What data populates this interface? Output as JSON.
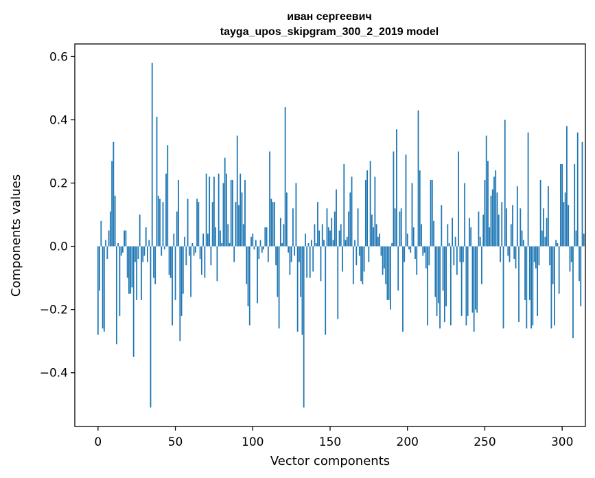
{
  "chart_data": {
    "type": "bar",
    "title_line1": "иван сергеевич",
    "title_line2": "tayga_upos_skipgram_300_2_2019 model",
    "xlabel": "Vector components",
    "ylabel": "Components values",
    "xlim": [
      -15,
      315
    ],
    "ylim": [
      -0.57,
      0.64
    ],
    "xticks": [
      0,
      50,
      100,
      150,
      200,
      250,
      300
    ],
    "xtick_labels": [
      "0",
      "50",
      "100",
      "150",
      "200",
      "250",
      "300"
    ],
    "yticks": [
      -0.4,
      -0.2,
      0.0,
      0.2,
      0.4,
      0.6
    ],
    "ytick_labels": [
      "−0.4",
      "−0.2",
      "0.0",
      "0.2",
      "0.4",
      "0.6"
    ],
    "bar_color": "#1f77b4",
    "grid": false,
    "values": [
      -0.28,
      -0.14,
      0.08,
      -0.26,
      -0.27,
      0.02,
      -0.04,
      0.05,
      0.11,
      0.27,
      0.33,
      0.16,
      -0.31,
      0.01,
      -0.22,
      -0.03,
      -0.02,
      0.05,
      0.05,
      -0.1,
      -0.15,
      -0.15,
      -0.13,
      -0.35,
      -0.05,
      -0.17,
      -0.04,
      0.1,
      -0.17,
      -0.05,
      -0.03,
      0.06,
      -0.05,
      0.02,
      -0.51,
      0.58,
      -0.1,
      -0.12,
      0.41,
      0.16,
      0.15,
      -0.03,
      0.14,
      -0.01,
      0.23,
      0.32,
      -0.09,
      -0.1,
      -0.25,
      0.04,
      -0.17,
      0.11,
      0.21,
      -0.3,
      -0.22,
      -0.15,
      0.03,
      -0.06,
      0.15,
      -0.03,
      -0.16,
      0.01,
      -0.03,
      -0.02,
      0.15,
      0.14,
      -0.04,
      -0.09,
      0.04,
      -0.1,
      0.23,
      0.04,
      0.22,
      -0.06,
      0.14,
      0.22,
      0.06,
      -0.11,
      0.23,
      0.05,
      0.01,
      0.2,
      0.28,
      0.23,
      0.07,
      0.01,
      0.21,
      0.21,
      -0.05,
      0.14,
      0.35,
      0.13,
      0.23,
      0.17,
      0.07,
      0.21,
      -0.12,
      -0.19,
      -0.25,
      0.03,
      0.04,
      -0.01,
      0.02,
      -0.18,
      -0.04,
      0.02,
      -0.02,
      -0.01,
      0.06,
      0.06,
      -0.05,
      0.3,
      0.15,
      0.14,
      0.14,
      -0.06,
      -0.16,
      -0.26,
      0.09,
      0.01,
      0.07,
      0.44,
      0.17,
      -0.02,
      -0.09,
      -0.05,
      0.12,
      -0.03,
      0.2,
      -0.27,
      -0.05,
      -0.16,
      -0.28,
      -0.51,
      0.04,
      -0.1,
      0.01,
      -0.1,
      0.02,
      -0.08,
      0.07,
      0.01,
      0.14,
      0.05,
      -0.11,
      0.07,
      0.02,
      -0.28,
      0.12,
      0.06,
      0.05,
      0.09,
      0.02,
      0.11,
      0.18,
      -0.23,
      0.05,
      0.07,
      -0.08,
      0.26,
      0.02,
      0.03,
      0.11,
      0.17,
      0.22,
      -0.12,
      0.02,
      -0.06,
      0.12,
      -0.03,
      -0.11,
      -0.12,
      -0.08,
      0.21,
      0.24,
      -0.05,
      0.27,
      0.1,
      0.06,
      0.22,
      0.07,
      0.03,
      0.04,
      -0.03,
      -0.09,
      -0.07,
      -0.12,
      -0.17,
      -0.17,
      -0.2,
      0.01,
      0.3,
      0.12,
      0.37,
      -0.14,
      0.11,
      0.12,
      -0.27,
      -0.05,
      0.29,
      0.04,
      -0.01,
      -0.02,
      0.2,
      0.06,
      -0.04,
      -0.09,
      0.43,
      0.24,
      0.07,
      -0.03,
      -0.02,
      -0.07,
      -0.25,
      -0.06,
      0.21,
      0.21,
      0.08,
      -0.16,
      -0.22,
      -0.18,
      -0.26,
      0.13,
      -0.14,
      -0.24,
      -0.19,
      0.07,
      0.01,
      -0.25,
      0.09,
      -0.06,
      0.03,
      -0.09,
      0.3,
      -0.05,
      -0.22,
      -0.05,
      0.2,
      -0.25,
      -0.22,
      0.09,
      0.06,
      -0.21,
      -0.27,
      -0.2,
      -0.21,
      0.11,
      0.03,
      -0.12,
      0.1,
      0.21,
      0.35,
      0.27,
      0.06,
      0.16,
      0.18,
      0.22,
      0.24,
      0.17,
      0.1,
      -0.05,
      0.14,
      -0.26,
      0.4,
      0.12,
      -0.03,
      -0.05,
      0.07,
      0.13,
      -0.04,
      -0.07,
      0.19,
      -0.24,
      0.12,
      0.05,
      0.02,
      -0.17,
      -0.26,
      0.36,
      -0.17,
      -0.26,
      -0.25,
      -0.05,
      -0.07,
      -0.22,
      -0.06,
      0.21,
      0.05,
      0.12,
      0.03,
      0.09,
      0.19,
      -0.06,
      -0.26,
      -0.12,
      -0.25,
      0.02,
      0.01,
      -0.15,
      0.26,
      0.26,
      0.14,
      0.17,
      0.38,
      0.13,
      -0.08,
      -0.05,
      -0.29,
      0.26,
      0.05,
      0.36,
      -0.11,
      -0.19,
      0.33,
      0.04
    ]
  }
}
